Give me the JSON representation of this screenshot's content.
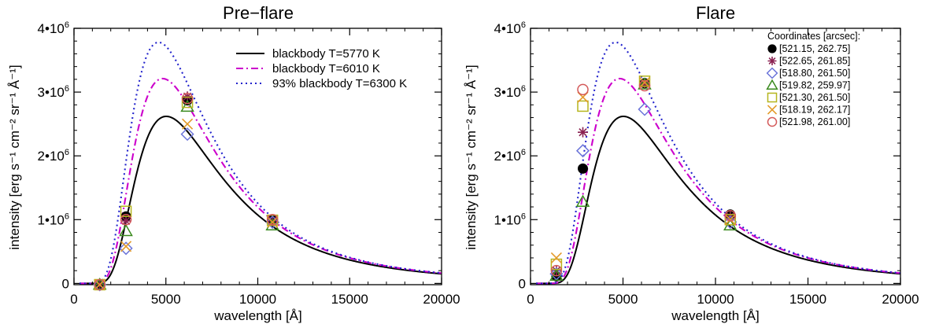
{
  "chart_data": [
    {
      "type": "line",
      "title": "Pre−flare",
      "xlabel": "wavelength [Å]",
      "ylabel": "intensity [erg s⁻¹ cm⁻² sr⁻¹ Å⁻¹]",
      "xlim": [
        0,
        20000
      ],
      "ylim": [
        -20000,
        4000000
      ],
      "xticks": [
        0,
        5000,
        10000,
        15000,
        20000
      ],
      "xtick_labels": [
        "0",
        "5000",
        "10000",
        "15000",
        "20000"
      ],
      "yticks": [
        0,
        1000000,
        2000000,
        3000000,
        4000000
      ],
      "ytick_labels": [
        "0",
        "1•10⁶",
        "2•10⁶",
        "3•10⁶",
        "4•10⁶"
      ],
      "legend_position": "top-right",
      "series": [
        {
          "name": "blackbody T=5770 K",
          "temperature_K": 5770,
          "scale": 1.0,
          "color": "#000000",
          "dash": "solid"
        },
        {
          "name": "blackbody T=6010 K",
          "temperature_K": 6010,
          "scale": 1.0,
          "color": "#cc00cc",
          "dash": "dashdot"
        },
        {
          "name": "93% blackbody T=6300 K",
          "temperature_K": 6300,
          "scale": 0.93,
          "color": "#2222cc",
          "dash": "dot"
        }
      ],
      "points": [
        {
          "x": 1400,
          "y": -20000,
          "marker": "filled-circle",
          "color": "#000000"
        },
        {
          "x": 1400,
          "y": -20000,
          "marker": "asterisk",
          "color": "#8b2252"
        },
        {
          "x": 1400,
          "y": -20000,
          "marker": "diamond",
          "color": "#6a73d9"
        },
        {
          "x": 1400,
          "y": -20000,
          "marker": "triangle",
          "color": "#3a8a1e"
        },
        {
          "x": 1400,
          "y": -20000,
          "marker": "square",
          "color": "#b5b51e"
        },
        {
          "x": 1400,
          "y": -20000,
          "marker": "x",
          "color": "#e39a2a"
        },
        {
          "x": 1400,
          "y": -20000,
          "marker": "open-circle",
          "color": "#d45a5a"
        },
        {
          "x": 2830,
          "y": 1050000,
          "marker": "filled-circle",
          "color": "#000000"
        },
        {
          "x": 2830,
          "y": 980000,
          "marker": "asterisk",
          "color": "#8b2252"
        },
        {
          "x": 2830,
          "y": 550000,
          "marker": "diamond",
          "color": "#6a73d9"
        },
        {
          "x": 2830,
          "y": 820000,
          "marker": "triangle",
          "color": "#3a8a1e"
        },
        {
          "x": 2830,
          "y": 1130000,
          "marker": "square",
          "color": "#b5b51e"
        },
        {
          "x": 2830,
          "y": 580000,
          "marker": "x",
          "color": "#e39a2a"
        },
        {
          "x": 2830,
          "y": 1000000,
          "marker": "open-circle",
          "color": "#d45a5a"
        },
        {
          "x": 6170,
          "y": 2870000,
          "marker": "filled-circle",
          "color": "#000000"
        },
        {
          "x": 6170,
          "y": 2930000,
          "marker": "asterisk",
          "color": "#8b2252"
        },
        {
          "x": 6170,
          "y": 2340000,
          "marker": "diamond",
          "color": "#6a73d9"
        },
        {
          "x": 6170,
          "y": 2770000,
          "marker": "triangle",
          "color": "#3a8a1e"
        },
        {
          "x": 6170,
          "y": 2840000,
          "marker": "square",
          "color": "#b5b51e"
        },
        {
          "x": 6170,
          "y": 2500000,
          "marker": "x",
          "color": "#e39a2a"
        },
        {
          "x": 6170,
          "y": 2900000,
          "marker": "open-circle",
          "color": "#d45a5a"
        },
        {
          "x": 10800,
          "y": 1000000,
          "marker": "filled-circle",
          "color": "#000000"
        },
        {
          "x": 10800,
          "y": 980000,
          "marker": "asterisk",
          "color": "#8b2252"
        },
        {
          "x": 10800,
          "y": 960000,
          "marker": "diamond",
          "color": "#6a73d9"
        },
        {
          "x": 10800,
          "y": 910000,
          "marker": "triangle",
          "color": "#3a8a1e"
        },
        {
          "x": 10800,
          "y": 990000,
          "marker": "square",
          "color": "#b5b51e"
        },
        {
          "x": 10800,
          "y": 960000,
          "marker": "x",
          "color": "#e39a2a"
        },
        {
          "x": 10800,
          "y": 1000000,
          "marker": "open-circle",
          "color": "#d45a5a"
        }
      ]
    },
    {
      "type": "line",
      "title": "Flare",
      "xlabel": "wavelength [Å]",
      "ylabel": "intensity [erg s⁻¹ cm⁻² sr⁻¹ Å⁻¹]",
      "xlim": [
        0,
        20000
      ],
      "ylim": [
        -20000,
        4000000
      ],
      "xticks": [
        0,
        5000,
        10000,
        15000,
        20000
      ],
      "xtick_labels": [
        "0",
        "5000",
        "10000",
        "15000",
        "20000"
      ],
      "yticks": [
        0,
        1000000,
        2000000,
        3000000,
        4000000
      ],
      "ytick_labels": [
        "0",
        "1•10⁶",
        "2•10⁶",
        "3•10⁶",
        "4•10⁶"
      ],
      "legend_position": "top-right",
      "legend_title": "Coordinates [arcsec]:",
      "series": [
        {
          "temperature_K": 5770,
          "scale": 1.0,
          "color": "#000000",
          "dash": "solid"
        },
        {
          "temperature_K": 6010,
          "scale": 1.0,
          "color": "#cc00cc",
          "dash": "dashdot"
        },
        {
          "temperature_K": 6300,
          "scale": 0.93,
          "color": "#2222cc",
          "dash": "dot"
        }
      ],
      "legend_entries": [
        {
          "label": "[521.15, 262.75]",
          "marker": "filled-circle",
          "color": "#000000"
        },
        {
          "label": "[522.65, 261.85]",
          "marker": "asterisk",
          "color": "#8b2252"
        },
        {
          "label": "[518.80, 261.50]",
          "marker": "diamond",
          "color": "#6a73d9"
        },
        {
          "label": "[519.82, 259.97]",
          "marker": "triangle",
          "color": "#3a8a1e"
        },
        {
          "label": "[521.30, 261.50]",
          "marker": "square",
          "color": "#b5b51e"
        },
        {
          "label": "[518.19, 262.17]",
          "marker": "x",
          "color": "#e39a2a"
        },
        {
          "label": "[521.98, 261.00]",
          "marker": "open-circle",
          "color": "#d45a5a"
        }
      ],
      "points": [
        {
          "x": 1400,
          "y": 110000,
          "marker": "filled-circle",
          "color": "#000000"
        },
        {
          "x": 1400,
          "y": 200000,
          "marker": "asterisk",
          "color": "#8b2252"
        },
        {
          "x": 1400,
          "y": 150000,
          "marker": "diamond",
          "color": "#6a73d9"
        },
        {
          "x": 1400,
          "y": 120000,
          "marker": "triangle",
          "color": "#3a8a1e"
        },
        {
          "x": 1400,
          "y": 300000,
          "marker": "square",
          "color": "#b5b51e"
        },
        {
          "x": 1400,
          "y": 400000,
          "marker": "x",
          "color": "#e39a2a"
        },
        {
          "x": 1400,
          "y": 200000,
          "marker": "open-circle",
          "color": "#d45a5a"
        },
        {
          "x": 2830,
          "y": 1800000,
          "marker": "filled-circle",
          "color": "#000000"
        },
        {
          "x": 2830,
          "y": 2370000,
          "marker": "asterisk",
          "color": "#8b2252"
        },
        {
          "x": 2830,
          "y": 2080000,
          "marker": "diamond",
          "color": "#6a73d9"
        },
        {
          "x": 2830,
          "y": 1280000,
          "marker": "triangle",
          "color": "#3a8a1e"
        },
        {
          "x": 2830,
          "y": 2780000,
          "marker": "square",
          "color": "#b5b51e"
        },
        {
          "x": 2830,
          "y": 2920000,
          "marker": "x",
          "color": "#e39a2a"
        },
        {
          "x": 2830,
          "y": 3040000,
          "marker": "open-circle",
          "color": "#d45a5a"
        },
        {
          "x": 6170,
          "y": 3140000,
          "marker": "filled-circle",
          "color": "#000000"
        },
        {
          "x": 6170,
          "y": 3130000,
          "marker": "asterisk",
          "color": "#8b2252"
        },
        {
          "x": 6170,
          "y": 2730000,
          "marker": "diamond",
          "color": "#6a73d9"
        },
        {
          "x": 6170,
          "y": 3120000,
          "marker": "triangle",
          "color": "#3a8a1e"
        },
        {
          "x": 6170,
          "y": 3170000,
          "marker": "square",
          "color": "#b5b51e"
        },
        {
          "x": 6170,
          "y": 3150000,
          "marker": "x",
          "color": "#e39a2a"
        },
        {
          "x": 6170,
          "y": 3100000,
          "marker": "open-circle",
          "color": "#d45a5a"
        },
        {
          "x": 10800,
          "y": 1080000,
          "marker": "filled-circle",
          "color": "#000000"
        },
        {
          "x": 10800,
          "y": 1050000,
          "marker": "asterisk",
          "color": "#8b2252"
        },
        {
          "x": 10800,
          "y": 960000,
          "marker": "diamond",
          "color": "#6a73d9"
        },
        {
          "x": 10800,
          "y": 910000,
          "marker": "triangle",
          "color": "#3a8a1e"
        },
        {
          "x": 10800,
          "y": 1000000,
          "marker": "square",
          "color": "#b5b51e"
        },
        {
          "x": 10800,
          "y": 1000000,
          "marker": "x",
          "color": "#e39a2a"
        },
        {
          "x": 10800,
          "y": 1060000,
          "marker": "open-circle",
          "color": "#d45a5a"
        }
      ]
    }
  ]
}
